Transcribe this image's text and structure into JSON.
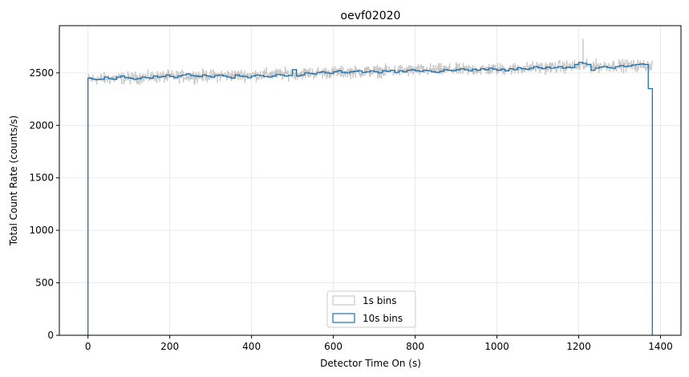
{
  "chart_data": {
    "type": "line",
    "title": "oevf02020",
    "xlabel": "Detector Time On (s)",
    "ylabel": "Total Count Rate (counts/s)",
    "xlim": [
      -70,
      1450
    ],
    "ylim": [
      0,
      2950
    ],
    "xticks": [
      0,
      200,
      400,
      600,
      800,
      1000,
      1200,
      1400
    ],
    "yticks": [
      0,
      500,
      1000,
      1500,
      2000,
      2500
    ],
    "grid": true,
    "legend_position": "lower-center",
    "series": [
      {
        "name": "1s bins",
        "color": "#c8c8c8",
        "bin_width": 1,
        "x_range": [
          0,
          1380
        ],
        "trend": [
          [
            0,
            2440
          ],
          [
            200,
            2465
          ],
          [
            400,
            2480
          ],
          [
            600,
            2505
          ],
          [
            800,
            2525
          ],
          [
            1000,
            2535
          ],
          [
            1200,
            2565
          ],
          [
            1380,
            2570
          ]
        ],
        "noise_amplitude": 55,
        "peaks": [
          [
            1210,
            2820
          ]
        ]
      },
      {
        "name": "10s bins",
        "color": "#1f6fa8",
        "bin_width": 10,
        "x_start": 0,
        "values": [
          2450,
          2440,
          2435,
          2440,
          2460,
          2445,
          2440,
          2460,
          2470,
          2455,
          2450,
          2440,
          2445,
          2460,
          2455,
          2450,
          2470,
          2460,
          2465,
          2480,
          2465,
          2455,
          2470,
          2480,
          2490,
          2475,
          2470,
          2465,
          2480,
          2470,
          2460,
          2475,
          2480,
          2470,
          2460,
          2450,
          2480,
          2470,
          2465,
          2455,
          2470,
          2480,
          2475,
          2465,
          2460,
          2470,
          2485,
          2480,
          2470,
          2475,
          2530,
          2470,
          2480,
          2500,
          2495,
          2490,
          2505,
          2510,
          2500,
          2495,
          2510,
          2520,
          2505,
          2500,
          2510,
          2515,
          2520,
          2505,
          2510,
          2520,
          2510,
          2500,
          2520,
          2515,
          2525,
          2505,
          2520,
          2510,
          2525,
          2530,
          2520,
          2515,
          2525,
          2520,
          2510,
          2505,
          2515,
          2530,
          2525,
          2520,
          2530,
          2540,
          2530,
          2520,
          2535,
          2525,
          2540,
          2530,
          2545,
          2535,
          2525,
          2535,
          2520,
          2540,
          2530,
          2550,
          2540,
          2535,
          2545,
          2560,
          2550,
          2540,
          2555,
          2545,
          2550,
          2560,
          2545,
          2555,
          2550,
          2580,
          2600,
          2590,
          2580,
          2525,
          2545,
          2555,
          2560,
          2550,
          2545,
          2560,
          2570,
          2560,
          2565,
          2575,
          2580,
          2585,
          2580,
          2350
        ]
      }
    ]
  }
}
